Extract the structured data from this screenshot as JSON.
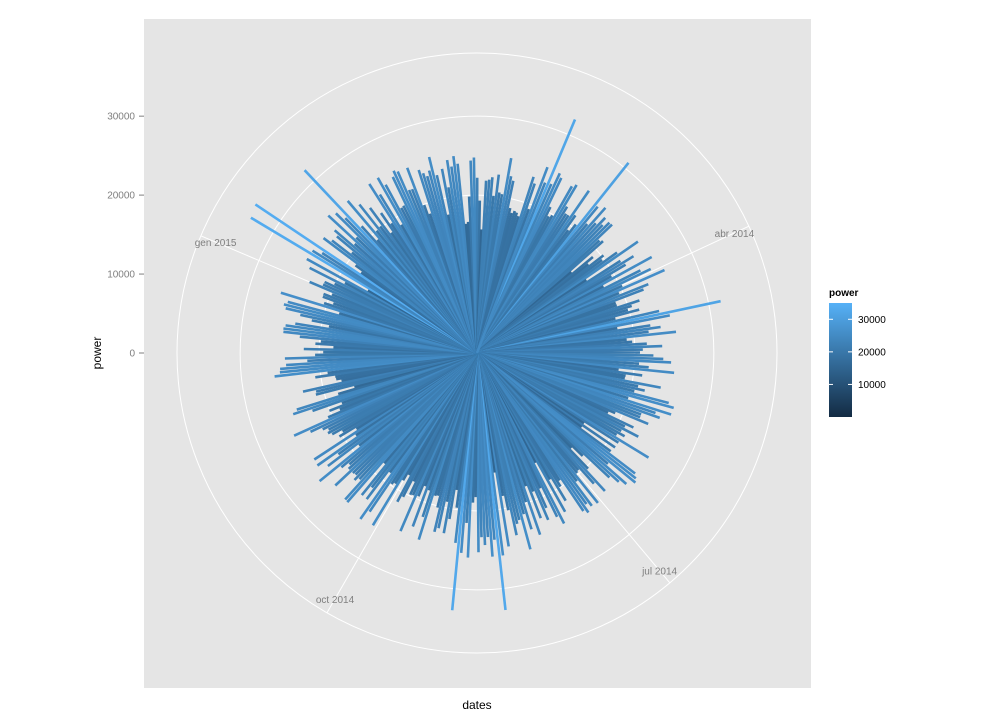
{
  "chart_data": {
    "type": "polar_bar",
    "xlabel": "dates",
    "ylabel": "power",
    "y_ticks": [
      0,
      10000,
      20000,
      30000
    ],
    "y_tick_labels": [
      "0",
      "10000",
      "20000",
      "30000"
    ],
    "ylim": [
      0,
      38000
    ],
    "theta_labels": [
      "abr 2014",
      "jul 2014",
      "oct 2014",
      "gen 2015"
    ],
    "series_summary": {
      "n_bars": 365,
      "typical_power_range": [
        18000,
        26000
      ],
      "max_power": 34000,
      "min_power": 15000
    },
    "legend": {
      "title": "power",
      "breaks": [
        10000,
        20000,
        30000
      ],
      "break_labels": [
        "10000",
        "20000",
        "30000"
      ],
      "range": [
        0,
        35000
      ],
      "low_color": "#132B43",
      "high_color": "#56B1F7"
    },
    "grid": true,
    "panel_background": "#e5e5e5",
    "grid_color": "#ffffff"
  }
}
